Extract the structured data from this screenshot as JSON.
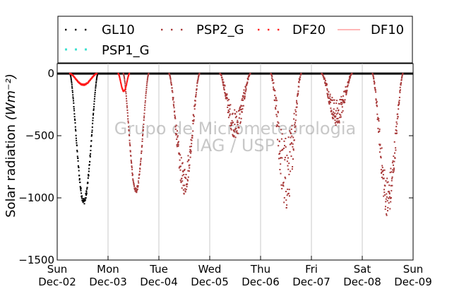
{
  "chart_data": {
    "type": "scatter",
    "title": "",
    "ylabel": "Solar radiation",
    "ylabel_unit": "(Wm⁻²)",
    "ylim": [
      -1500,
      80
    ],
    "y_ticks": [
      0,
      -500,
      -1000,
      -1500
    ],
    "y_tick_labels": [
      "0",
      "−500",
      "−1000",
      "−1500"
    ],
    "xlim_days": [
      0,
      7
    ],
    "x_ticks": [
      {
        "day": 0,
        "weekday": "Sun",
        "date": "Dec-02"
      },
      {
        "day": 1,
        "weekday": "Mon",
        "date": "Dec-03"
      },
      {
        "day": 2,
        "weekday": "Tue",
        "date": "Dec-04"
      },
      {
        "day": 3,
        "weekday": "Wed",
        "date": "Dec-05"
      },
      {
        "day": 4,
        "weekday": "Thu",
        "date": "Dec-06"
      },
      {
        "day": 5,
        "weekday": "Fri",
        "date": "Dec-07"
      },
      {
        "day": 6,
        "weekday": "Sat",
        "date": "Dec-08"
      },
      {
        "day": 7,
        "weekday": "Sun",
        "date": "Dec-09"
      }
    ],
    "grid": "vertical",
    "legend_position": "top",
    "watermark": [
      "Grupo de Micrometeorologia",
      "IAG / USP"
    ],
    "series": [
      {
        "name": "GL10",
        "color": "#000000",
        "style": "dots",
        "days": [
          {
            "start": 0.25,
            "end": 0.8,
            "peak": -1050,
            "noise": 0.05
          }
        ]
      },
      {
        "name": "PSP2_G",
        "color": "#a83a3a",
        "style": "dots",
        "days": [
          {
            "start": 1.3,
            "end": 1.8,
            "peak": -960,
            "noise": 0.04
          },
          {
            "start": 2.2,
            "end": 2.8,
            "peak": -970,
            "noise": 0.25
          },
          {
            "start": 3.2,
            "end": 3.8,
            "peak": -520,
            "noise": 0.45
          },
          {
            "start": 4.2,
            "end": 4.8,
            "peak": -1100,
            "noise": 0.55
          },
          {
            "start": 5.2,
            "end": 5.8,
            "peak": -420,
            "noise": 0.5
          },
          {
            "start": 6.2,
            "end": 6.8,
            "peak": -1150,
            "noise": 0.3
          }
        ]
      },
      {
        "name": "DF20",
        "color": "#ff1a1a",
        "style": "dots",
        "days": [
          {
            "start": 0.25,
            "end": 0.78,
            "peak": -95,
            "noise": 0.1
          },
          {
            "start": 1.2,
            "end": 1.42,
            "peak": -145,
            "noise": 0.05
          }
        ]
      },
      {
        "name": "DF10",
        "color": "#ff8c8c",
        "style": "line",
        "days": []
      },
      {
        "name": "PSP1_G",
        "color": "#40e0d0",
        "style": "dots",
        "days": []
      }
    ]
  }
}
